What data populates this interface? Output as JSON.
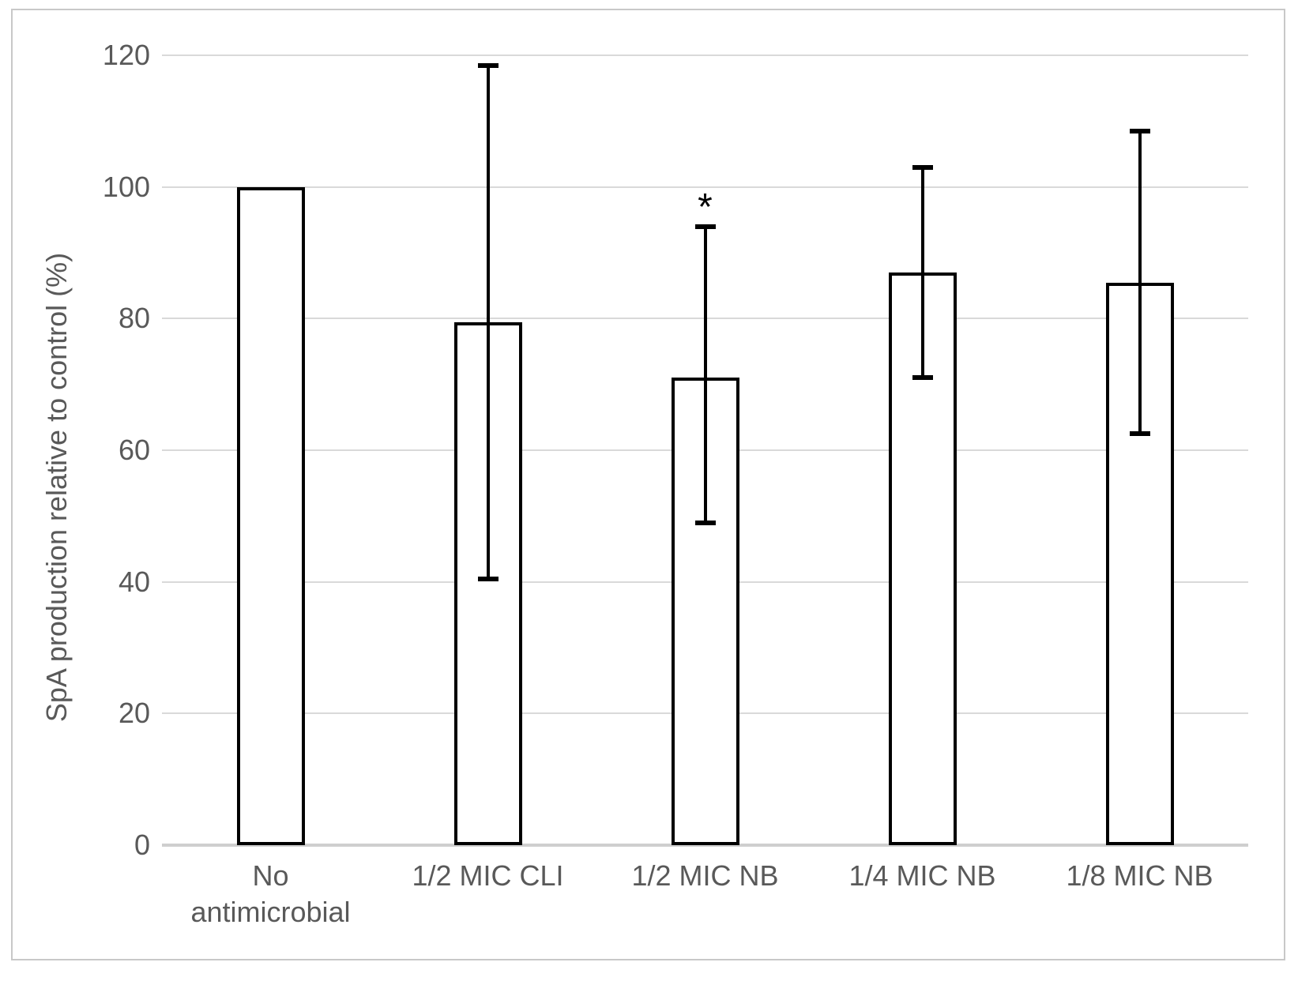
{
  "figure": {
    "background": "#ffffff",
    "border_color": "#c8c8c8"
  },
  "chart_data": {
    "type": "bar",
    "title": "",
    "xlabel": "",
    "ylabel": "SpA production relative to control (%)",
    "categories": [
      "No antimicrobial",
      "1/2 MIC CLI",
      "1/2 MIC NB",
      "1/4 MIC NB",
      "1/8 MIC NB"
    ],
    "values": [
      100,
      79.5,
      71,
      87,
      85.5
    ],
    "error_upper": [
      null,
      118.5,
      94,
      103,
      108.5
    ],
    "error_lower": [
      null,
      40.5,
      49,
      71,
      62.5
    ],
    "annotations": [
      {
        "category_index": 2,
        "text": "*"
      }
    ],
    "ylim": [
      0,
      120
    ],
    "yticks": [
      0,
      20,
      40,
      60,
      80,
      100,
      120
    ],
    "grid": "horizontal",
    "legend": "none",
    "bar_fill": "#ffffff",
    "bar_border_color": "#000000",
    "error_bar_color": "#000000",
    "gridline_color": "#d9d9d9",
    "axis_line_color": "#cfcfcf",
    "text_color": "#595959"
  }
}
